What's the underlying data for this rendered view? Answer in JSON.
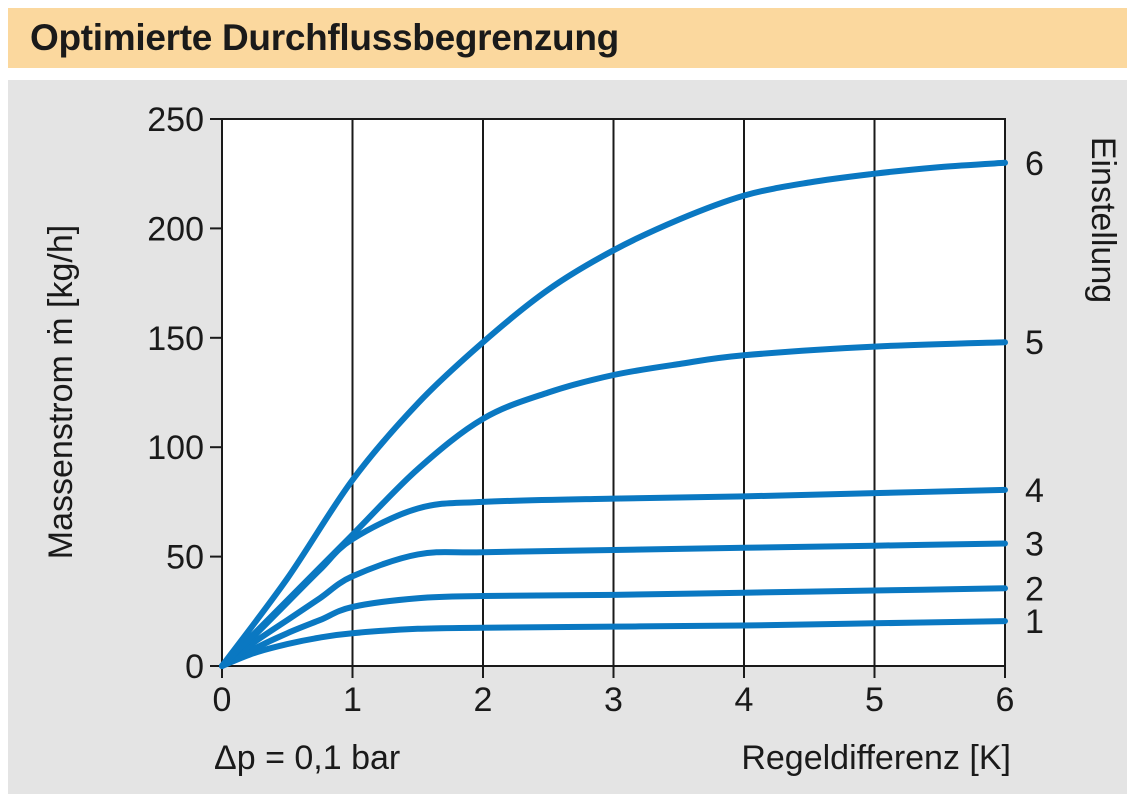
{
  "header": {
    "title": "Optimierte Durchflussbegrenzung"
  },
  "chart_data": {
    "type": "line",
    "title": "Optimierte Durchflussbegrenzung",
    "xlabel": "Regeldifferenz [K]",
    "ylabel": "Massenstrom ṁ [kg/h]",
    "right_label": "Einstellung",
    "annotation": "Δp = 0,1 bar",
    "xlim": [
      0,
      6
    ],
    "ylim": [
      0,
      250
    ],
    "x_ticks": [
      "0",
      "1",
      "2",
      "3",
      "4",
      "5",
      "6"
    ],
    "y_ticks": [
      "0",
      "50",
      "100",
      "150",
      "200",
      "250"
    ],
    "grid": "vertical",
    "line_color": "#0a78c2",
    "series": [
      {
        "name": "1",
        "x": [
          0,
          0.25,
          0.5,
          0.75,
          1,
          1.5,
          2,
          3,
          4,
          5,
          6
        ],
        "values": [
          0,
          6,
          10,
          13,
          15,
          17,
          17.5,
          18,
          18.5,
          19.5,
          20.5
        ]
      },
      {
        "name": "2",
        "x": [
          0,
          0.25,
          0.5,
          0.75,
          1,
          1.5,
          2,
          3,
          4,
          5,
          6
        ],
        "values": [
          0,
          8,
          15,
          21,
          27,
          31,
          32,
          32.5,
          33.5,
          34.5,
          35.5
        ]
      },
      {
        "name": "3",
        "x": [
          0,
          0.25,
          0.5,
          0.75,
          1,
          1.5,
          2,
          3,
          4,
          5,
          6
        ],
        "values": [
          0,
          11,
          21,
          31,
          41,
          51,
          52,
          53,
          54,
          55,
          56
        ]
      },
      {
        "name": "4",
        "x": [
          0,
          0.25,
          0.5,
          0.75,
          1,
          1.5,
          2,
          3,
          4,
          5,
          6
        ],
        "values": [
          0,
          14,
          29,
          44,
          58,
          72,
          75,
          76.5,
          77.5,
          79,
          80.5
        ]
      },
      {
        "name": "5",
        "x": [
          0,
          0.5,
          1,
          1.5,
          2,
          2.5,
          3,
          3.5,
          4,
          5,
          6
        ],
        "values": [
          0,
          30,
          60,
          90,
          113,
          125,
          133,
          138,
          142,
          146,
          148
        ]
      },
      {
        "name": "6",
        "x": [
          0,
          0.5,
          1,
          1.5,
          2,
          2.5,
          3,
          3.5,
          4,
          4.5,
          5,
          5.5,
          6
        ],
        "values": [
          0,
          40,
          85,
          120,
          148,
          172,
          190,
          204,
          215,
          221,
          225,
          228,
          230
        ]
      }
    ]
  }
}
